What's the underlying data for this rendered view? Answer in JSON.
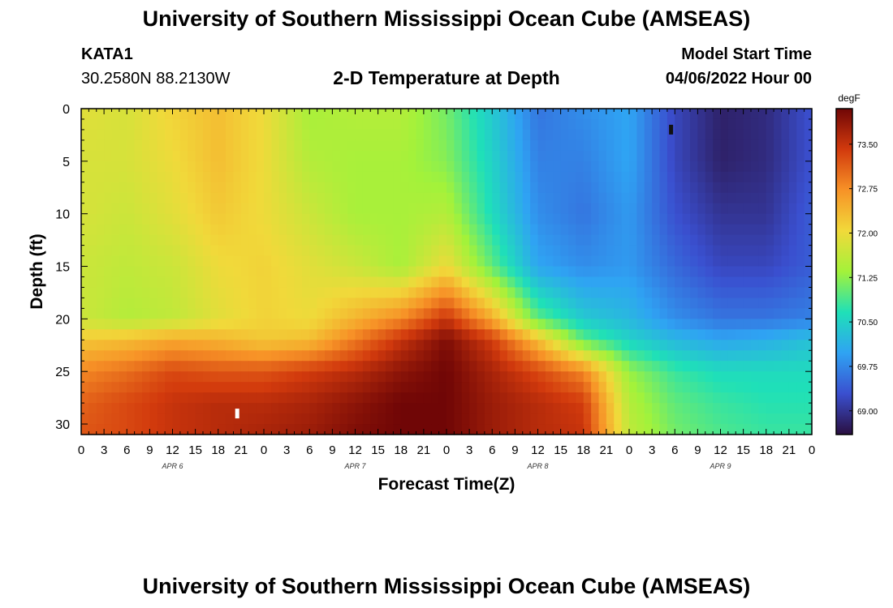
{
  "header": {
    "title": "University of Southern Mississippi Ocean Cube (AMSEAS)",
    "station_id": "KATA1",
    "coords": "30.2580N  88.2130W",
    "chart_title": "2-D Temperature at Depth",
    "model_start_label": "Model Start Time",
    "model_start_value": "04/06/2022 Hour 00"
  },
  "footer": {
    "title": "University of Southern Mississippi Ocean Cube (AMSEAS)"
  },
  "chart_data": {
    "type": "heatmap",
    "title": "2-D Temperature at Depth",
    "xlabel": "Forecast Time(Z)",
    "ylabel": "Depth (ft)",
    "x_range_hours": [
      0,
      96
    ],
    "x_tick_step_hours": 3,
    "x_tick_labels": [
      "0",
      "3",
      "6",
      "9",
      "12",
      "15",
      "18",
      "21",
      "0",
      "3",
      "6",
      "9",
      "12",
      "15",
      "18",
      "21",
      "0",
      "3",
      "6",
      "9",
      "12",
      "15",
      "18",
      "21",
      "0",
      "3",
      "6",
      "9",
      "12",
      "15",
      "18",
      "21",
      "0"
    ],
    "day_labels": [
      "APR 6",
      "APR 7",
      "APR 8",
      "APR 9"
    ],
    "y_range_ft": [
      0,
      31
    ],
    "y_ticks": [
      0,
      5,
      10,
      15,
      20,
      25,
      30
    ],
    "y_tick_labels": [
      "0",
      "5",
      "10",
      "15",
      "20",
      "25",
      "30"
    ],
    "depths_ft": [
      0,
      5,
      10,
      15,
      20,
      22,
      25,
      28,
      31
    ],
    "times_h": [
      0,
      6,
      12,
      18,
      24,
      30,
      36,
      42,
      48,
      54,
      60,
      66,
      72,
      78,
      84,
      90,
      96
    ],
    "temperature_degF": [
      [
        71.9,
        71.8,
        72.1,
        72.3,
        72.0,
        71.4,
        71.5,
        71.5,
        71.1,
        70.4,
        69.6,
        69.8,
        70.0,
        69.2,
        68.8,
        68.9,
        69.3
      ],
      [
        71.8,
        71.8,
        72.0,
        72.3,
        72.0,
        71.5,
        71.4,
        71.4,
        71.2,
        70.5,
        69.7,
        69.7,
        70.0,
        69.2,
        68.8,
        68.9,
        69.3
      ],
      [
        71.8,
        71.7,
        71.9,
        72.2,
        72.0,
        71.7,
        71.4,
        71.4,
        71.5,
        70.6,
        69.8,
        69.6,
        69.9,
        69.3,
        69.0,
        69.0,
        69.4
      ],
      [
        71.7,
        71.6,
        71.7,
        72.0,
        72.1,
        71.9,
        71.7,
        71.4,
        72.0,
        71.0,
        70.0,
        69.8,
        69.9,
        69.5,
        69.2,
        69.2,
        69.4
      ],
      [
        71.7,
        71.5,
        71.6,
        71.9,
        72.1,
        72.0,
        72.4,
        72.8,
        73.5,
        72.5,
        71.0,
        70.4,
        70.2,
        69.8,
        69.6,
        69.6,
        69.7
      ],
      [
        72.2,
        72.3,
        72.5,
        72.4,
        72.2,
        72.3,
        72.9,
        73.5,
        74.0,
        73.4,
        72.3,
        71.0,
        70.5,
        70.2,
        70.0,
        70.1,
        70.3
      ],
      [
        72.8,
        73.0,
        73.3,
        73.2,
        73.2,
        73.4,
        73.6,
        73.9,
        74.1,
        73.7,
        73.3,
        72.8,
        71.3,
        70.8,
        70.6,
        70.6,
        70.6
      ],
      [
        73.1,
        73.3,
        73.5,
        73.6,
        73.6,
        73.7,
        73.9,
        74.1,
        74.1,
        73.8,
        73.6,
        73.4,
        71.5,
        71.0,
        70.8,
        70.7,
        70.7
      ],
      [
        73.2,
        73.3,
        73.5,
        73.6,
        73.7,
        73.8,
        74.0,
        74.1,
        74.1,
        73.8,
        73.6,
        73.5,
        71.6,
        71.1,
        70.9,
        70.8,
        70.8
      ]
    ],
    "markers": [
      {
        "time_h": 20.5,
        "depth_ft": 29,
        "color": "#ffffff"
      },
      {
        "time_h": 77.5,
        "depth_ft": 2,
        "color": "#111111"
      }
    ],
    "colorbar": {
      "unit": "degF",
      "range": [
        68.6,
        74.1
      ],
      "ticks": [
        69.0,
        69.75,
        70.5,
        71.25,
        72.0,
        72.75,
        73.5
      ],
      "tick_labels": [
        "69.00",
        "69.75",
        "70.50",
        "71.25",
        "72.00",
        "72.75",
        "73.50"
      ],
      "colors": [
        "#2a0f40",
        "#3a4fcf",
        "#2fa3f3",
        "#1fe0b8",
        "#a3f23a",
        "#f1d93a",
        "#f79227",
        "#d23a0d",
        "#700606"
      ]
    }
  }
}
